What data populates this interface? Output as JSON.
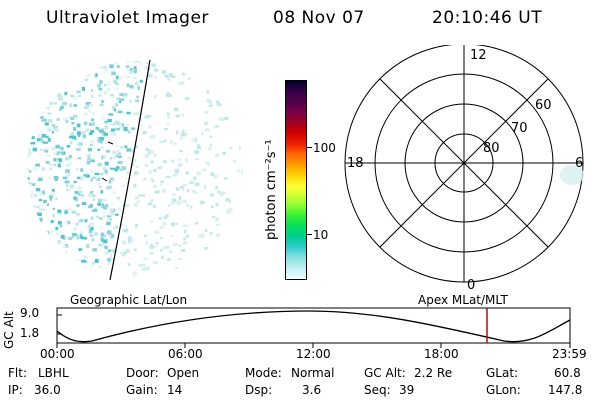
{
  "header": {
    "title": "Ultraviolet Imager",
    "date": "08 Nov 07",
    "time": "20:10:46 UT"
  },
  "colorbar": {
    "unit_label": "photon cm⁻²s⁻¹",
    "ticks": [
      "100",
      "10"
    ],
    "colors": [
      "#000033",
      "#330044",
      "#55004d",
      "#7a0044",
      "#a00022",
      "#cc0000",
      "#ee2200",
      "#ff6600",
      "#ff9900",
      "#ffcc00",
      "#ffff33",
      "#ccff33",
      "#88ff33",
      "#33ee33",
      "#00dd66",
      "#00cc99",
      "#33cccc",
      "#88e0e0",
      "#c8f0f0",
      "#eeffff"
    ]
  },
  "polar_grid": {
    "mlt_labels": {
      "top": "12",
      "left": "18",
      "right": "6",
      "bottom": "0"
    },
    "lat_labels": [
      "60",
      "70",
      "80"
    ]
  },
  "orbit": {
    "left_label": "Geographic Lat/Lon",
    "right_label": "Apex MLat/MLT",
    "axis_label": "GC Alt",
    "y_ticks": [
      "9.0",
      "1.8"
    ],
    "x_ticks": [
      "00:00",
      "06:00",
      "12:00",
      "18:00",
      "23:59"
    ],
    "current_marker_color": "#cc0000"
  },
  "status": {
    "flt_label": "Flt:",
    "flt_value": "LBHL",
    "ip_label": "IP:",
    "ip_value": "36.0",
    "door_label": "Door:",
    "door_value": "Open",
    "gain_label": "Gain:",
    "gain_value": "14",
    "mode_label": "Mode:",
    "mode_value": "Normal",
    "dsp_label": "Dsp:",
    "dsp_value": "3.6",
    "gcalt_label": "GC Alt:",
    "gcalt_value": "2.2 Re",
    "seq_label": "Seq:",
    "seq_value": "39",
    "glat_label": "GLat:",
    "glat_value": "60.8",
    "glon_label": "GLon:",
    "glon_value": "147.8"
  }
}
